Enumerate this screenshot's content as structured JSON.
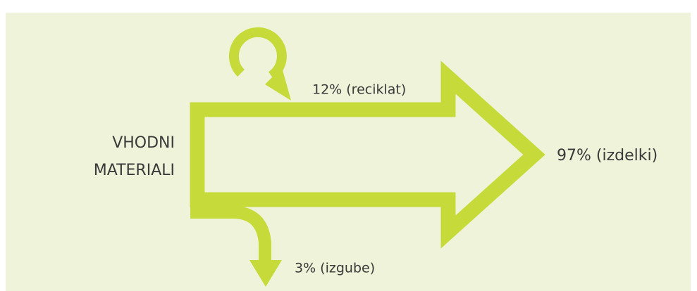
{
  "input": {
    "lines": [
      "VHODNI",
      "MATERIALI"
    ]
  },
  "flows": {
    "recycled": "12% (reciklat)",
    "products": "97% (izdelki)",
    "losses": "3% (izgube)"
  }
}
